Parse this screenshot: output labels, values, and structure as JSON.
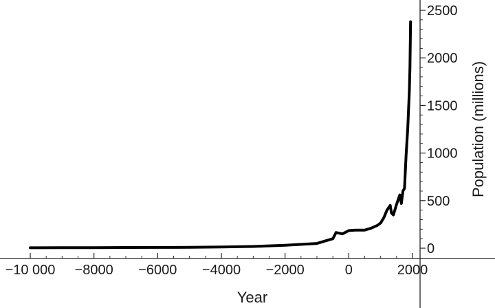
{
  "chart_data": {
    "type": "line",
    "xlabel": "Year",
    "ylabel": "Population (millions)",
    "xlim": [
      -10000,
      2000
    ],
    "ylim": [
      0,
      2500
    ],
    "x_ticks": [
      -10000,
      -8000,
      -6000,
      -4000,
      -2000,
      0,
      2000
    ],
    "x_tick_labels": [
      "−10 000",
      "−8000",
      "−6000",
      "−4000",
      "−2000",
      "0",
      "2000"
    ],
    "y_ticks": [
      0,
      500,
      1000,
      1500,
      2000,
      2500
    ],
    "y_tick_labels": [
      "0",
      "500",
      "1000",
      "1500",
      "2000",
      "2500"
    ],
    "y_axis_position": "right",
    "grid": false,
    "legend": "none",
    "line_color": "#000000",
    "series": [
      {
        "x": [
          -10000,
          -9000,
          -8000,
          -7000,
          -6000,
          -5000,
          -4000,
          -3000,
          -2000,
          -1000,
          -500,
          -400,
          -200,
          1,
          200,
          500,
          700,
          900,
          1000,
          1100,
          1200,
          1300,
          1340,
          1400,
          1500,
          1600,
          1650,
          1700,
          1750,
          1800,
          1850,
          1900,
          1920,
          1940
        ],
        "y": [
          4,
          5,
          6,
          7,
          8,
          9,
          12,
          18,
          30,
          50,
          100,
          165,
          150,
          185,
          190,
          190,
          210,
          240,
          265,
          320,
          400,
          450,
          370,
          350,
          460,
          560,
          470,
          600,
          630,
          980,
          1260,
          1650,
          1900,
          2380
        ]
      }
    ]
  }
}
